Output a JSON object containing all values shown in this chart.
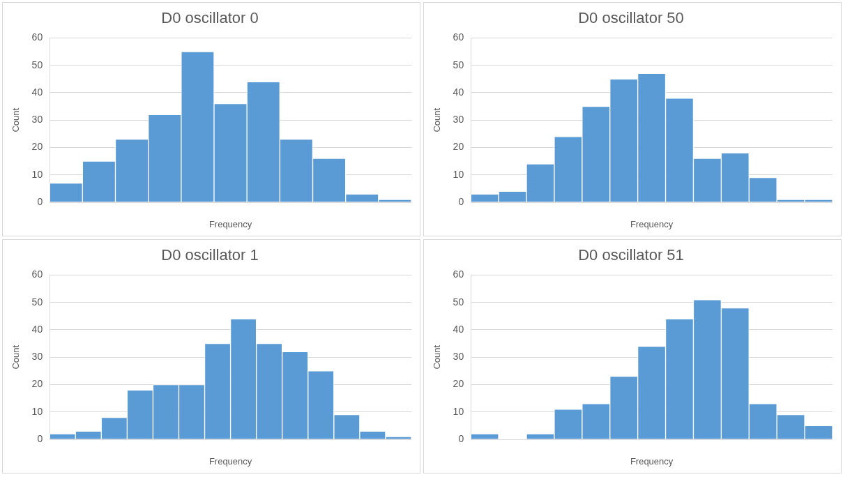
{
  "chart_data": [
    {
      "type": "bar",
      "title": "D0 oscillator 0",
      "xlabel": "Frequency",
      "ylabel": "Count",
      "categories": [
        null,
        null,
        null,
        null,
        null,
        null,
        null,
        null,
        null,
        null,
        null
      ],
      "values": [
        7,
        15,
        23,
        32,
        55,
        36,
        44,
        23,
        16,
        3,
        1
      ],
      "color": "#5b9bd5",
      "ylim": [
        0,
        60
      ],
      "yticks": [
        0,
        10,
        20,
        30,
        40,
        50,
        60
      ],
      "grid": "y",
      "legend": false
    },
    {
      "type": "bar",
      "title": "D0 oscillator 50",
      "xlabel": "Frequency",
      "ylabel": "Count",
      "categories": [
        null,
        null,
        null,
        null,
        null,
        null,
        null,
        null,
        null,
        null,
        null,
        null,
        null
      ],
      "values": [
        3,
        4,
        14,
        24,
        35,
        45,
        47,
        38,
        16,
        18,
        9,
        1,
        1
      ],
      "color": "#5b9bd5",
      "ylim": [
        0,
        60
      ],
      "yticks": [
        0,
        10,
        20,
        30,
        40,
        50,
        60
      ],
      "grid": "y",
      "legend": false
    },
    {
      "type": "bar",
      "title": "D0 oscillator 1",
      "xlabel": "Frequency",
      "ylabel": "Count",
      "categories": [
        null,
        null,
        null,
        null,
        null,
        null,
        null,
        null,
        null,
        null,
        null,
        null,
        null,
        null
      ],
      "values": [
        2,
        3,
        8,
        18,
        20,
        20,
        35,
        44,
        35,
        32,
        25,
        9,
        3,
        1
      ],
      "color": "#5b9bd5",
      "ylim": [
        0,
        60
      ],
      "yticks": [
        0,
        10,
        20,
        30,
        40,
        50,
        60
      ],
      "grid": "y",
      "legend": false
    },
    {
      "type": "bar",
      "title": "D0 oscillator 51",
      "xlabel": "Frequency",
      "ylabel": "Count",
      "categories": [
        null,
        null,
        null,
        null,
        null,
        null,
        null,
        null,
        null,
        null,
        null,
        null,
        null
      ],
      "values": [
        2,
        0,
        2,
        11,
        13,
        23,
        34,
        44,
        51,
        48,
        13,
        9,
        5
      ],
      "color": "#5b9bd5",
      "ylim": [
        0,
        60
      ],
      "yticks": [
        0,
        10,
        20,
        30,
        40,
        50,
        60
      ],
      "grid": "y",
      "legend": false
    }
  ]
}
